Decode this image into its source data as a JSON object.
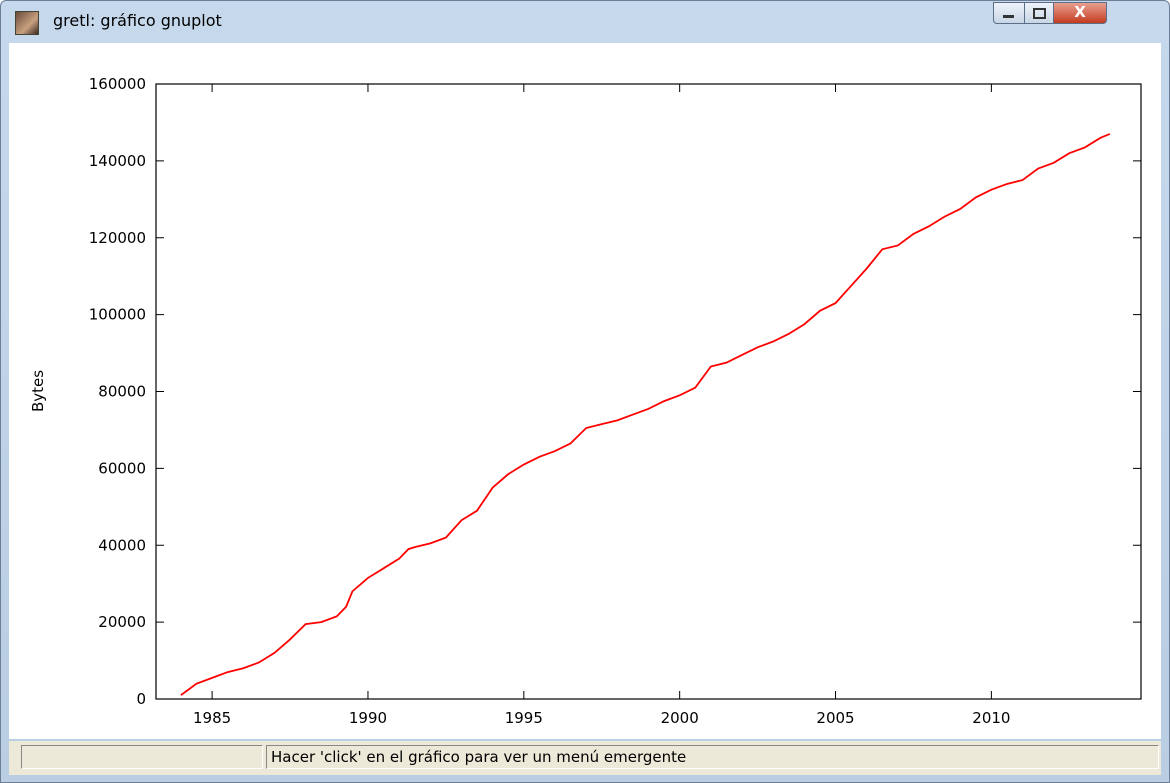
{
  "window": {
    "title": "gretl: gráfico gnuplot",
    "status": "Hacer 'click' en el gráfico para ver un menú emergente"
  },
  "chart_data": {
    "type": "line",
    "ylabel": "Bytes",
    "color": "#ff0000",
    "x": [
      1984.0,
      1984.5,
      1985.0,
      1985.5,
      1986.0,
      1986.5,
      1987.0,
      1987.5,
      1988.0,
      1988.5,
      1989.0,
      1989.3,
      1989.5,
      1990.0,
      1990.5,
      1991.0,
      1991.3,
      1991.5,
      1992.0,
      1992.5,
      1993.0,
      1993.5,
      1994.0,
      1994.5,
      1995.0,
      1995.5,
      1996.0,
      1996.5,
      1997.0,
      1997.5,
      1998.0,
      1998.5,
      1999.0,
      1999.5,
      2000.0,
      2000.5,
      2001.0,
      2001.5,
      2002.0,
      2002.5,
      2003.0,
      2003.5,
      2004.0,
      2004.5,
      2005.0,
      2005.5,
      2006.0,
      2006.5,
      2007.0,
      2007.5,
      2008.0,
      2008.5,
      2009.0,
      2009.5,
      2010.0,
      2010.5,
      2011.0,
      2011.5,
      2012.0,
      2012.5,
      2013.0,
      2013.5,
      2013.8
    ],
    "values": [
      1000,
      4000,
      5500,
      7000,
      8000,
      9500,
      12000,
      15500,
      19500,
      20000,
      21500,
      24000,
      28000,
      31500,
      34000,
      36500,
      39000,
      39500,
      40500,
      42000,
      46500,
      49000,
      55000,
      58500,
      61000,
      63000,
      64500,
      66500,
      70500,
      71500,
      72500,
      74000,
      75500,
      77500,
      79000,
      81000,
      86500,
      87500,
      89500,
      91500,
      93000,
      95000,
      97500,
      101000,
      103000,
      107500,
      112000,
      117000,
      118000,
      121000,
      123000,
      125500,
      127500,
      130500,
      132500,
      134000,
      135000,
      138000,
      139500,
      142000,
      143500,
      146000,
      147000
    ],
    "xlim": [
      1983.2,
      2014.8
    ],
    "xticks": [
      1985,
      1990,
      1995,
      2000,
      2005,
      2010
    ],
    "ylim": [
      0,
      160000
    ],
    "yticks": [
      0,
      20000,
      40000,
      60000,
      80000,
      100000,
      120000,
      140000,
      160000
    ]
  }
}
